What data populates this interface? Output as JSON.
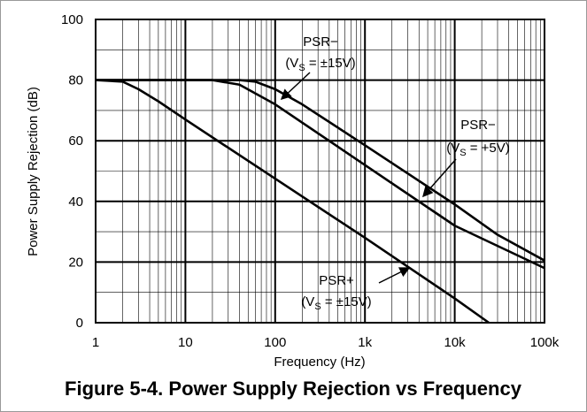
{
  "chart_data": {
    "type": "line",
    "caption": "Figure 5-4. Power Supply Rejection vs Frequency",
    "x_label": "Frequency (Hz)",
    "y_label": "Power Supply Rejection (dB)",
    "xscale": "log",
    "grid": true,
    "minor_grid": true,
    "xlim": [
      1,
      100000
    ],
    "ylim": [
      0,
      100
    ],
    "xticks": [
      1,
      10,
      100,
      {
        "value": 1000,
        "label": "1k"
      },
      {
        "value": 10000,
        "label": "10k"
      },
      {
        "value": 100000,
        "label": "100k"
      }
    ],
    "yticks": [
      0,
      20,
      40,
      60,
      80,
      100
    ],
    "series": [
      {
        "color": "#000000",
        "x": [
          1,
          40,
          60,
          100,
          200,
          1000,
          10000,
          30000,
          100000
        ],
        "values": [
          80,
          80,
          79.5,
          77,
          72,
          58.5,
          39,
          29,
          20.5
        ]
      },
      {
        "color": "#000000",
        "x": [
          1,
          20,
          40,
          100,
          1000,
          10000,
          100000
        ],
        "values": [
          80,
          80,
          78.5,
          72,
          52,
          32,
          18
        ]
      },
      {
        "color": "#000000",
        "x": [
          1,
          2,
          3,
          5,
          10,
          100,
          1000,
          10000,
          24000
        ],
        "values": [
          80,
          79.5,
          77,
          73,
          67,
          47.5,
          28,
          8,
          0
        ]
      }
    ],
    "annotations": [
      {
        "line1": "PSR−",
        "line2": [
          "(V",
          "S",
          " = ±15V)"
        ]
      },
      {
        "line1": "PSR−",
        "line2": [
          "(V",
          "S",
          " = +5V)"
        ]
      },
      {
        "line1": "PSR+",
        "line2": [
          "(V",
          "S",
          " = ±15V)"
        ]
      }
    ]
  }
}
